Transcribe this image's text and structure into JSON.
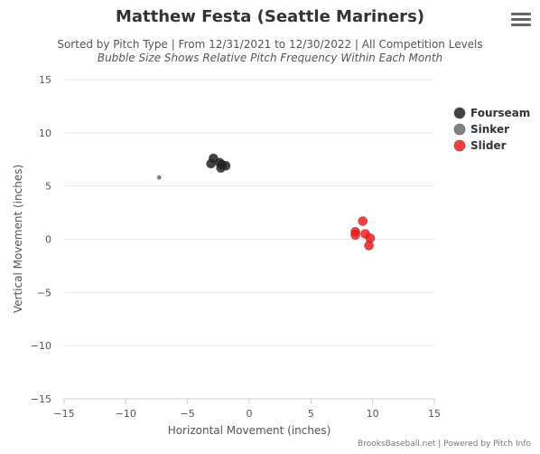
{
  "header": {
    "title": "Matthew Festa (Seattle Mariners)",
    "subtitle": "Sorted by Pitch Type | From 12/31/2021 to 12/30/2022 | All Competition Levels",
    "subtitle2": "Bubble Size Shows Relative Pitch Frequency Within Each Month"
  },
  "menu": {
    "icon": "hamburger-menu-icon"
  },
  "credits": "BrooksBaseball.net | Powered by Pitch Info",
  "chart_data": {
    "type": "scatter",
    "title": "Matthew Festa (Seattle Mariners)",
    "xlabel": "Horizontal Movement (inches)",
    "ylabel": "Vertical Movement (inches)",
    "xlim": [
      -15,
      15
    ],
    "ylim": [
      -15,
      15
    ],
    "xticks": [
      -15,
      -10,
      -5,
      0,
      5,
      10,
      15
    ],
    "yticks": [
      -15,
      -10,
      -5,
      0,
      5,
      10,
      15
    ],
    "grid": "horizontal",
    "legend_position": "right",
    "series": [
      {
        "name": "Fourseam",
        "color": "#222222",
        "points": [
          {
            "x": -3.1,
            "y": 7.1,
            "r": 5
          },
          {
            "x": -2.9,
            "y": 7.6,
            "r": 5
          },
          {
            "x": -2.4,
            "y": 7.2,
            "r": 5
          },
          {
            "x": -2.2,
            "y": 7.0,
            "r": 5
          },
          {
            "x": -2.3,
            "y": 6.7,
            "r": 5
          },
          {
            "x": -1.9,
            "y": 6.9,
            "r": 5
          }
        ]
      },
      {
        "name": "Sinker",
        "color": "#6b6b6b",
        "points": [
          {
            "x": -7.3,
            "y": 5.8,
            "r": 2
          }
        ]
      },
      {
        "name": "Slider",
        "color": "#ff1a1a",
        "points": [
          {
            "x": 9.2,
            "y": 1.7,
            "r": 5
          },
          {
            "x": 8.6,
            "y": 0.7,
            "r": 5
          },
          {
            "x": 8.6,
            "y": 0.4,
            "r": 5
          },
          {
            "x": 9.4,
            "y": 0.5,
            "r": 5
          },
          {
            "x": 9.8,
            "y": 0.1,
            "r": 5
          },
          {
            "x": 9.7,
            "y": -0.6,
            "r": 5
          }
        ]
      }
    ]
  }
}
